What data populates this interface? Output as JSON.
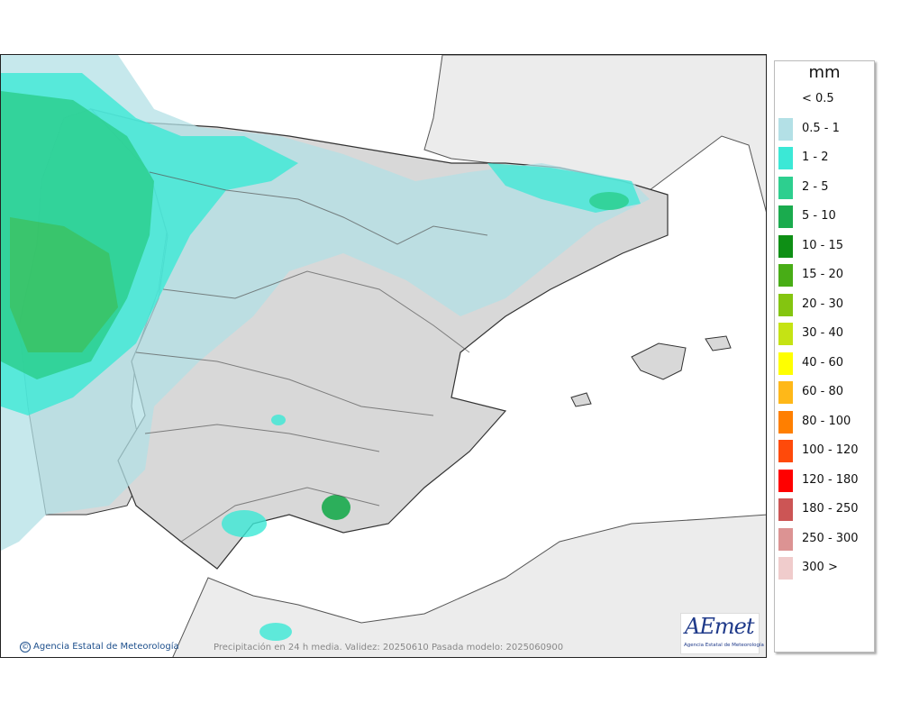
{
  "legend": {
    "unit": "mm",
    "items": [
      {
        "label": "< 0.5",
        "color": "#ffffff"
      },
      {
        "label": "0.5 - 1",
        "color": "#b3e0e6"
      },
      {
        "label": "1 - 2",
        "color": "#3be8d6"
      },
      {
        "label": "2 - 5",
        "color": "#2dcf8f"
      },
      {
        "label": "5 - 10",
        "color": "#1aab4e"
      },
      {
        "label": "10 - 15",
        "color": "#0e8f15"
      },
      {
        "label": "15 - 20",
        "color": "#48ad16"
      },
      {
        "label": "20 - 30",
        "color": "#84c510"
      },
      {
        "label": "30 - 40",
        "color": "#c5e314"
      },
      {
        "label": "40 - 60",
        "color": "#ffff00"
      },
      {
        "label": "60 - 80",
        "color": "#ffb818"
      },
      {
        "label": "80 - 100",
        "color": "#ff7f00"
      },
      {
        "label": "100 - 120",
        "color": "#ff4a0a"
      },
      {
        "label": "120 - 180",
        "color": "#ff0000"
      },
      {
        "label": "180 - 250",
        "color": "#cc5555"
      },
      {
        "label": "250 - 300",
        "color": "#dc9393"
      },
      {
        "label": "300 >",
        "color": "#f0cccc"
      }
    ]
  },
  "footer": {
    "credit": "Agencia Estatal de Meteorología",
    "caption": "Precipitación en 24 h media. Validez: 20250610 Pasada modelo: 2025060900"
  },
  "logo": {
    "word": "AEmet",
    "subtitle": "Agencia Estatal de Meteorología"
  },
  "colors": {
    "sea": "#ffffff",
    "land": "#d8d8d8",
    "foreign_land": "#ececec",
    "border": "#333333"
  }
}
